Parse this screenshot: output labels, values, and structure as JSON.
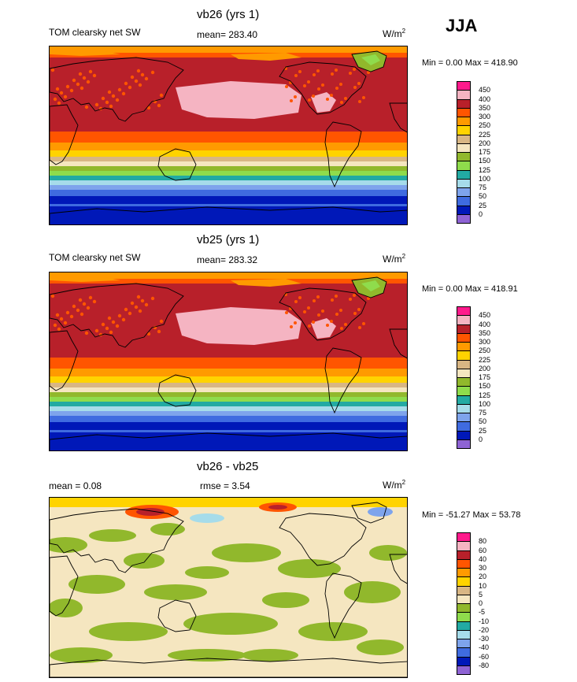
{
  "season": "JJA",
  "colors": {
    "abs": [
      "#8e63d4",
      "#0018b8",
      "#3f6be0",
      "#7ea4ec",
      "#a6dcea",
      "#22aaa3",
      "#8fdc4c",
      "#91b82c",
      "#f5e6c0",
      "#d8b684",
      "#ffd300",
      "#ff9a00",
      "#ff5500",
      "#b8202a",
      "#f5b4c2",
      "#ff1a8c"
    ],
    "diff": [
      "#8e63d4",
      "#0018b8",
      "#3f6be0",
      "#7ea4ec",
      "#a6dcea",
      "#22aaa3",
      "#8fdc4c",
      "#91b82c",
      "#f5e6c0",
      "#d8b684",
      "#ffd300",
      "#ff9a00",
      "#ff5500",
      "#b8202a",
      "#f5b4c2",
      "#ff1a8c"
    ]
  },
  "panels": [
    {
      "title": "vb26 (yrs 1)",
      "left_label": "TOM clearsky net SW",
      "center_label": "mean= 283.40",
      "units": "W/m",
      "units_sup": "2",
      "minmax": "Min =   0.00 Max = 418.90",
      "colorbar_labels": [
        "450",
        "400",
        "350",
        "300",
        "250",
        "225",
        "200",
        "175",
        "150",
        "125",
        "100",
        "75",
        "50",
        "25",
        "0"
      ],
      "kind": "abs"
    },
    {
      "title": "vb25 (yrs 1)",
      "left_label": "TOM clearsky net SW",
      "center_label": "mean= 283.32",
      "units": "W/m",
      "units_sup": "2",
      "minmax": "Min =   0.00 Max = 418.91",
      "colorbar_labels": [
        "450",
        "400",
        "350",
        "300",
        "250",
        "225",
        "200",
        "175",
        "150",
        "125",
        "100",
        "75",
        "50",
        "25",
        "0"
      ],
      "kind": "abs"
    },
    {
      "title": "vb26 - vb25",
      "left_label": "mean =   0.08",
      "center_label": "rmse =   3.54",
      "units": "W/m",
      "units_sup": "2",
      "minmax": "Min = -51.27 Max =  53.78",
      "colorbar_labels": [
        "80",
        "60",
        "40",
        "30",
        "20",
        "10",
        "5",
        "0",
        "-5",
        "-10",
        "-20",
        "-30",
        "-40",
        "-60",
        "-80"
      ],
      "kind": "diff"
    }
  ]
}
